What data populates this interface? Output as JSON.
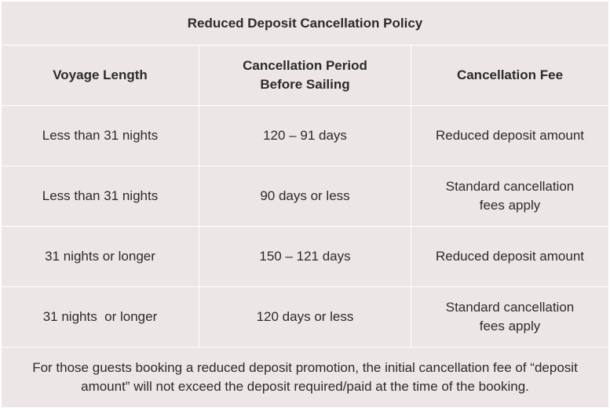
{
  "title": "Reduced Deposit Cancellation Policy",
  "headers": {
    "voyage_length": "Voyage Length",
    "cancellation_period": "Cancellation Period Before Sailing",
    "cancellation_fee": "Cancellation Fee"
  },
  "rows": [
    {
      "voyage_length": "Less than 31 nights",
      "period": "120 – 91 days",
      "fee": "Reduced deposit amount"
    },
    {
      "voyage_length": "Less than 31 nights",
      "period": "90 days or less",
      "fee": "Standard cancellation fees apply"
    },
    {
      "voyage_length": "31 nights or longer",
      "period": "150 – 121 days",
      "fee": "Reduced deposit amount"
    },
    {
      "voyage_length": "31 nights  or longer",
      "period": "120 days or less",
      "fee": "Standard cancellation fees apply"
    }
  ],
  "note": "For those guests booking a reduced deposit promotion, the initial cancellation fee of “deposit amount” will not exceed the deposit required/paid at the time of the booking."
}
